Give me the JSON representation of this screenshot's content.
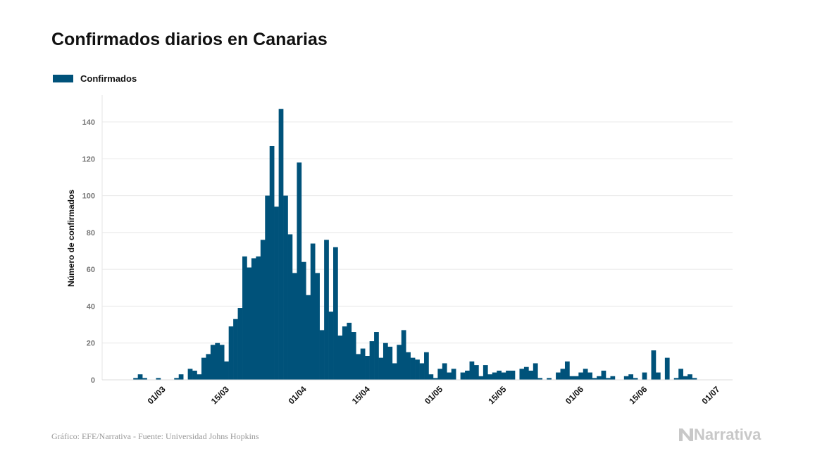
{
  "chart_data": {
    "type": "bar",
    "title": "Confirmados diarios en Canarias",
    "ylabel": "Número de confirmados",
    "xlabel": "",
    "ylim": [
      0,
      150
    ],
    "yticks": [
      0,
      20,
      40,
      60,
      80,
      100,
      120,
      140
    ],
    "grid": true,
    "legend": {
      "position": "top-left",
      "entries": [
        "Confirmados"
      ]
    },
    "series_color": "#00527a",
    "start_date": "22/02/2020",
    "xticks": [
      {
        "label": "01/03",
        "day": 8
      },
      {
        "label": "15/03",
        "day": 22
      },
      {
        "label": "01/04",
        "day": 39
      },
      {
        "label": "15/04",
        "day": 53
      },
      {
        "label": "01/05",
        "day": 69
      },
      {
        "label": "15/05",
        "day": 83
      },
      {
        "label": "01/06",
        "day": 100
      },
      {
        "label": "15/06",
        "day": 114
      },
      {
        "label": "01/07",
        "day": 130
      }
    ],
    "values": [
      0,
      1,
      3,
      1,
      0,
      0,
      1,
      0,
      0,
      0,
      1,
      3,
      0,
      6,
      5,
      3,
      12,
      14,
      19,
      20,
      19,
      10,
      29,
      33,
      39,
      67,
      61,
      66,
      67,
      76,
      100,
      127,
      94,
      147,
      100,
      79,
      58,
      118,
      64,
      46,
      74,
      58,
      27,
      76,
      37,
      72,
      24,
      29,
      31,
      26,
      14,
      17,
      13,
      21,
      26,
      12,
      20,
      18,
      9,
      19,
      27,
      15,
      12,
      11,
      9,
      15,
      3,
      1,
      6,
      9,
      4,
      6,
      0,
      4,
      5,
      10,
      8,
      2,
      8,
      3,
      4,
      5,
      4,
      5,
      5,
      0,
      6,
      7,
      5,
      9,
      1,
      0,
      1,
      0,
      4,
      6,
      10,
      2,
      2,
      4,
      6,
      4,
      1,
      2,
      5,
      1,
      2,
      0,
      0,
      2,
      3,
      1,
      0,
      4,
      0,
      16,
      4,
      0,
      12,
      0,
      1,
      6,
      2,
      3,
      1
    ]
  },
  "footer": "Gráfico: EFE/Narrativa - Fuente: Universidad Johns Hopkins",
  "logo": "Narrativa"
}
